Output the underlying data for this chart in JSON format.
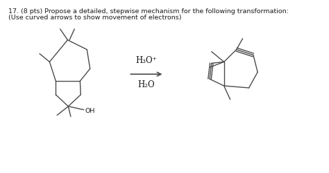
{
  "title_line1": "17. (8 pts) Propose a detailed, stepwise mechanism for the following transformation:",
  "title_line2": "(Use curved arrows to show movement of electrons)",
  "reagent_top": "H₃O⁺",
  "reagent_bottom": "H₂O",
  "bg_color": "#ffffff",
  "line_color": "#4a4a4a",
  "text_color": "#1a1a1a",
  "font_size_title": 6.8,
  "font_size_reagent": 8.5
}
